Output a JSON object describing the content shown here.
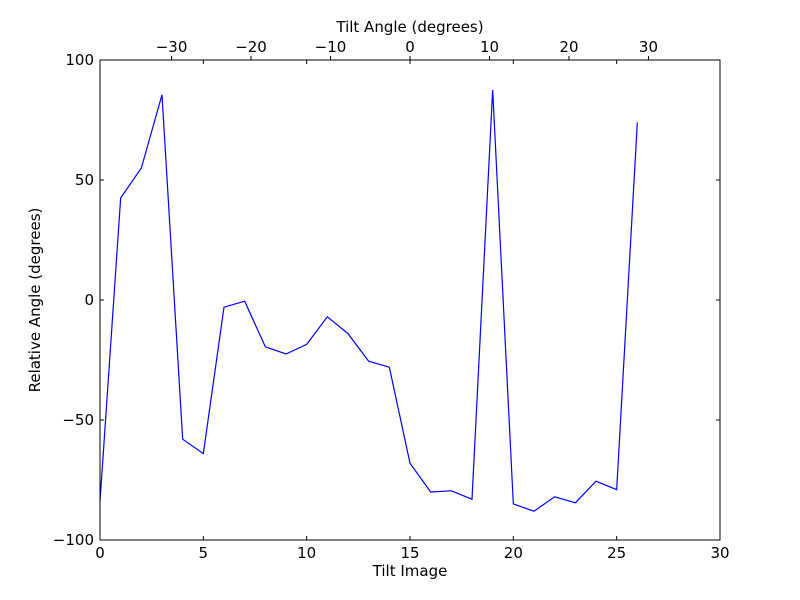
{
  "chart_data": {
    "type": "line",
    "title": "",
    "xlabel": "Tilt Image",
    "ylabel": "Relative Angle (degrees)",
    "top_xlabel": "Tilt Angle (degrees)",
    "xlim": [
      0,
      30
    ],
    "ylim": [
      -100,
      100
    ],
    "top_xlim": [
      -39,
      39
    ],
    "x_ticks": [
      0,
      5,
      10,
      15,
      20,
      25,
      30
    ],
    "y_ticks": [
      -100,
      -50,
      0,
      50,
      100
    ],
    "top_ticks": [
      -30,
      -20,
      -10,
      0,
      10,
      20,
      30
    ],
    "x_tick_labels": [
      "0",
      "5",
      "10",
      "15",
      "20",
      "25",
      "30"
    ],
    "y_tick_labels": [
      "−100",
      "−50",
      "0",
      "50",
      "100"
    ],
    "top_tick_labels": [
      "−30",
      "−20",
      "−10",
      "0",
      "10",
      "20",
      "30"
    ],
    "grid": false,
    "line_color": "#0000ff",
    "series": [
      {
        "x": [
          0,
          1,
          2,
          3,
          4,
          5,
          6,
          7,
          8,
          9,
          10,
          11,
          12,
          13,
          14,
          15,
          16,
          17,
          18,
          19,
          20,
          21,
          22,
          23,
          24,
          25,
          26
        ],
        "values": [
          -84,
          42.5,
          55,
          85.5,
          -58,
          -64,
          -3,
          -0.5,
          -19.5,
          -22.5,
          -18.5,
          -7,
          -14,
          -25.5,
          -28,
          -68,
          -80,
          -79.5,
          -83,
          87.5,
          -85,
          -88,
          -82,
          -84.5,
          -75.5,
          -79,
          74
        ]
      }
    ]
  }
}
